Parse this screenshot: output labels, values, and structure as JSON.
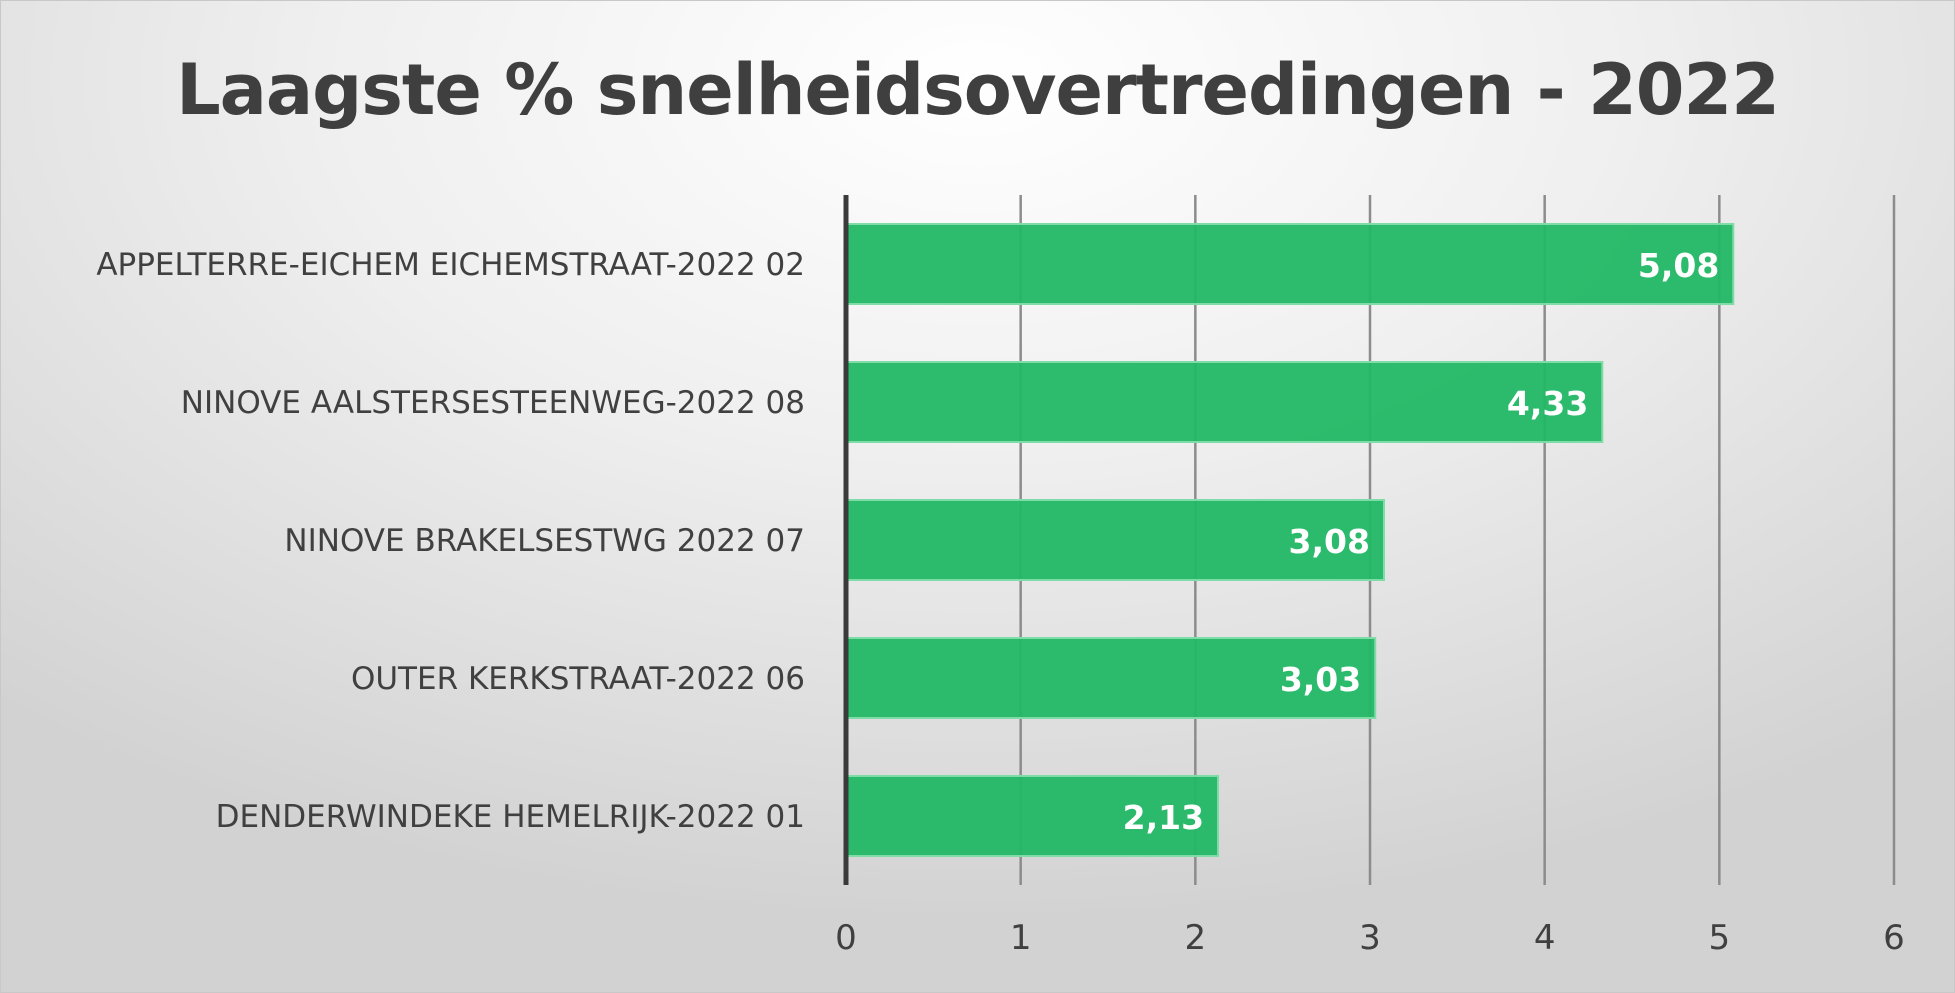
{
  "chart_data": {
    "type": "bar",
    "orientation": "horizontal",
    "title": "Laagste % snelheidsovertredingen - 2022",
    "categories": [
      "APPELTERRE-EICHEM EICHEMSTRAAT-2022 02",
      "NINOVE AALSTERSESTEENWEG-2022 08",
      "NINOVE BRAKELSESTWG 2022 07",
      "OUTER KERKSTRAAT-2022 06",
      "DENDERWINDEKE HEMELRIJK-2022 01"
    ],
    "values": [
      5.08,
      4.33,
      3.08,
      3.03,
      2.13
    ],
    "value_labels": [
      "5,08",
      "4,33",
      "3,08",
      "3,03",
      "2,13"
    ],
    "xticks": [
      "0",
      "1",
      "2",
      "3",
      "4",
      "5",
      "6"
    ],
    "xlim": [
      0,
      6
    ],
    "xlabel": "",
    "ylabel": "",
    "grid": "vertical",
    "legend": "none",
    "colors": {
      "bar": "#22b865",
      "bar_edge": "#7fdca6",
      "grid": "#8c8c8c",
      "axis": "#3a3a3a",
      "title": "#3f3f3f",
      "text": "#404040",
      "data_label": "#ffffff"
    }
  }
}
